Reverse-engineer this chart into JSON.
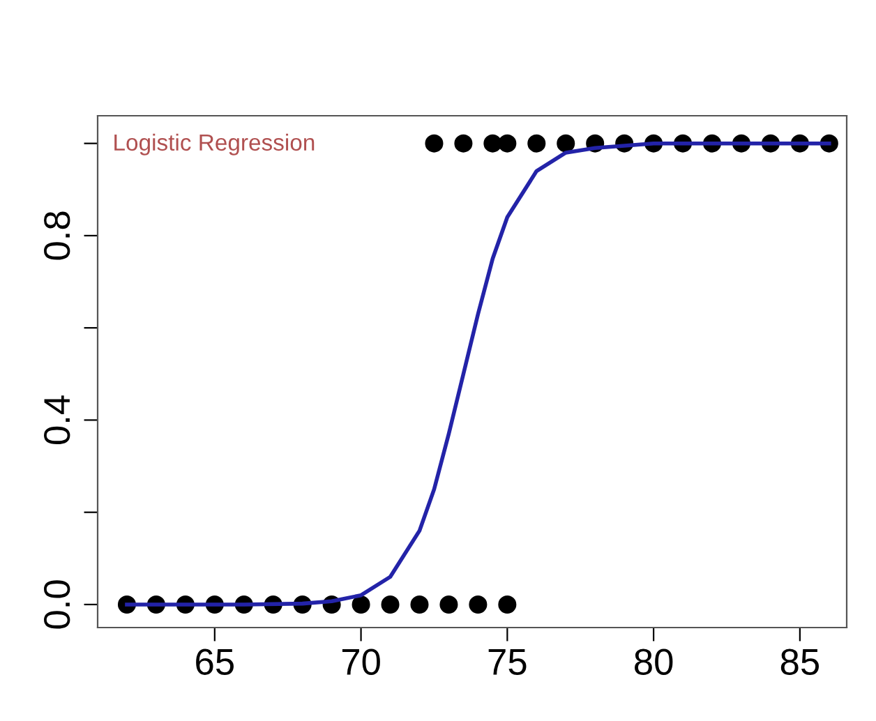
{
  "chart_data": {
    "type": "scatter",
    "annotations": [
      "Logistic Regression"
    ],
    "series": [
      {
        "color": "#000000",
        "marker": "circle",
        "x": [
          62,
          63,
          64,
          65,
          66,
          67,
          68,
          69,
          70,
          71,
          72,
          73,
          74,
          75
        ],
        "values": [
          0,
          0,
          0,
          0,
          0,
          0,
          0,
          0,
          0,
          0,
          0,
          0,
          0,
          0
        ]
      },
      {
        "color": "#000000",
        "marker": "circle",
        "x": [
          72.5,
          73.5,
          74.5,
          75,
          76,
          77,
          78,
          79,
          80,
          81,
          82,
          83,
          84,
          85,
          86
        ],
        "values": [
          1,
          1,
          1,
          1,
          1,
          1,
          1,
          1,
          1,
          1,
          1,
          1,
          1,
          1,
          1
        ]
      },
      {
        "type": "line",
        "color": "#2323a8",
        "marker": "none",
        "line_style": "solid",
        "x": [
          62,
          66,
          68,
          69,
          70,
          71,
          72,
          72.5,
          73,
          73.5,
          74,
          74.5,
          75,
          76,
          77,
          78,
          80,
          86
        ],
        "values": [
          0,
          0,
          0.002,
          0.007,
          0.02,
          0.06,
          0.16,
          0.25,
          0.37,
          0.5,
          0.63,
          0.75,
          0.84,
          0.94,
          0.98,
          0.99,
          1,
          1
        ]
      }
    ],
    "xlim": [
      61,
      86.6
    ],
    "ylim": [
      -0.05,
      1.06
    ],
    "xticks": [
      65,
      70,
      75,
      80,
      85
    ],
    "yticks": [
      {
        "value": 0,
        "label": "0.0"
      },
      {
        "value": 0.2,
        "label": null
      },
      {
        "value": 0.4,
        "label": "0.4"
      },
      {
        "value": 0.6,
        "label": null
      },
      {
        "value": 0.8,
        "label": "0.8"
      },
      {
        "value": 1.0,
        "label": null
      }
    ],
    "grid": false
  }
}
